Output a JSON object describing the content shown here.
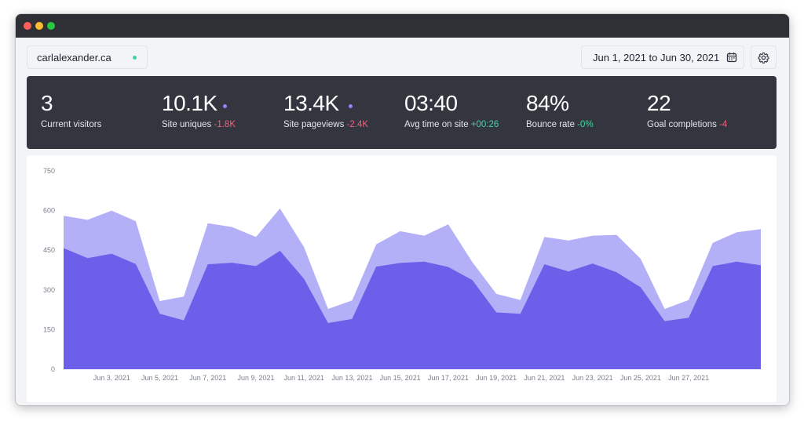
{
  "header": {
    "site": "carlalexander.ca",
    "date_range": "Jun 1, 2021 to Jun 30, 2021"
  },
  "stats": [
    {
      "value": "3",
      "label": "Current visitors",
      "change": "",
      "change_type": "",
      "dot": false
    },
    {
      "value": "10.1K",
      "label": "Site uniques",
      "change": "-1.8K",
      "change_type": "neg",
      "dot": true
    },
    {
      "value": "13.4K",
      "label": "Site pageviews",
      "change": "-2.4K",
      "change_type": "neg",
      "dot": true
    },
    {
      "value": "03:40",
      "label": "Avg time on site",
      "change": "+00:26",
      "change_type": "pos",
      "dot": false
    },
    {
      "value": "84%",
      "label": "Bounce rate",
      "change": "-0%",
      "change_type": "pos",
      "dot": false
    },
    {
      "value": "22",
      "label": "Goal completions",
      "change": "-4",
      "change_type": "neg",
      "dot": false
    }
  ],
  "colors": {
    "pageviews": "#b4b0f8",
    "uniques": "#6c5fe9",
    "dark_panel": "#33353f",
    "negative": "#f2627a",
    "positive": "#48d2a0"
  },
  "icons": {
    "calendar": "calendar-icon",
    "settings": "gear-icon"
  },
  "chart_data": {
    "type": "area",
    "x": [
      "Jun 1",
      "Jun 2",
      "Jun 3",
      "Jun 4",
      "Jun 5",
      "Jun 6",
      "Jun 7",
      "Jun 8",
      "Jun 9",
      "Jun 10",
      "Jun 11",
      "Jun 12",
      "Jun 13",
      "Jun 14",
      "Jun 15",
      "Jun 16",
      "Jun 17",
      "Jun 18",
      "Jun 19",
      "Jun 20",
      "Jun 21",
      "Jun 22",
      "Jun 23",
      "Jun 24",
      "Jun 25",
      "Jun 26",
      "Jun 27",
      "Jun 28",
      "Jun 29",
      "Jun 30"
    ],
    "x_tick_labels": [
      "Jun 3, 2021",
      "Jun 5, 2021",
      "Jun 7, 2021",
      "Jun 9, 2021",
      "Jun 11, 2021",
      "Jun 13, 2021",
      "Jun 15, 2021",
      "Jun 17, 2021",
      "Jun 19, 2021",
      "Jun 21, 2021",
      "Jun 23, 2021",
      "Jun 25, 2021",
      "Jun 27, 2021"
    ],
    "x_tick_indices": [
      2,
      4,
      6,
      8,
      10,
      12,
      14,
      16,
      18,
      20,
      22,
      24,
      26
    ],
    "yticks": [
      0,
      150,
      300,
      450,
      600,
      750
    ],
    "ylim": [
      0,
      750
    ],
    "series": [
      {
        "key": "pageviews",
        "values": [
          580,
          565,
          600,
          560,
          258,
          275,
          552,
          538,
          500,
          608,
          462,
          228,
          260,
          472,
          522,
          505,
          548,
          405,
          285,
          262,
          500,
          487,
          505,
          508,
          418,
          228,
          262,
          478,
          518,
          530
        ]
      },
      {
        "key": "uniques",
        "values": [
          458,
          420,
          437,
          398,
          210,
          185,
          397,
          403,
          390,
          448,
          342,
          175,
          190,
          388,
          402,
          407,
          387,
          337,
          215,
          210,
          397,
          370,
          400,
          367,
          310,
          182,
          195,
          390,
          407,
          393
        ]
      }
    ],
    "grid": false,
    "legend": "none"
  }
}
